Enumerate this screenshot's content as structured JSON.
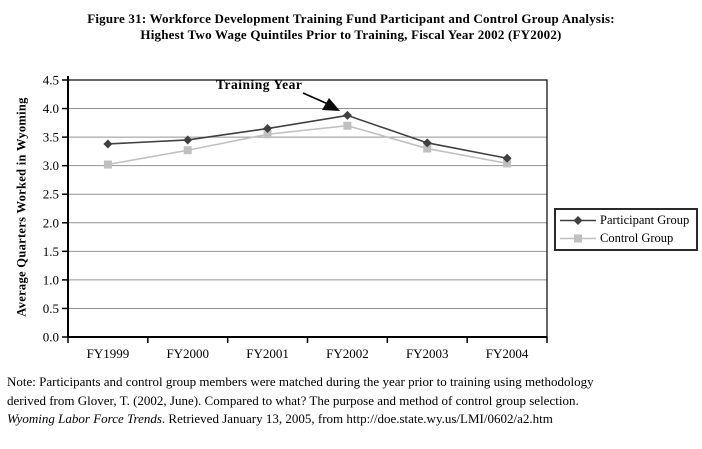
{
  "figure": {
    "title_line1": "Figure 31: Workforce Development Training Fund Participant and Control Group Analysis:",
    "title_line2": "Highest Two Wage Quintiles Prior to Training, Fiscal Year 2002 (FY2002)"
  },
  "chart_data": {
    "type": "line",
    "title": "Figure 31: Workforce Development Training Fund Participant and Control Group Analysis: Highest Two Wage Quintiles Prior to Training, Fiscal Year 2002 (FY2002)",
    "categories": [
      "FY1999",
      "FY2000",
      "FY2001",
      "FY2002",
      "FY2003",
      "FY2004"
    ],
    "series": [
      {
        "name": "Participant Group",
        "marker": "diamond",
        "color": "#404040",
        "values": [
          3.38,
          3.45,
          3.65,
          3.88,
          3.4,
          3.13
        ]
      },
      {
        "name": "Control Group",
        "marker": "square",
        "color": "#c0c0c0",
        "values": [
          3.02,
          3.27,
          3.55,
          3.7,
          3.3,
          3.04
        ]
      }
    ],
    "xlabel": "",
    "ylabel": "Average Quarters Worked in Wyoming",
    "ylim": [
      0,
      4.5
    ],
    "y_tick_labels": [
      "0.0",
      "0.5",
      "1.0",
      "1.5",
      "2.0",
      "2.5",
      "3.0",
      "3.5",
      "4.0",
      "4.5"
    ],
    "grid": "horizontal",
    "legend_position": "right",
    "annotation": {
      "text": "Training Year",
      "target_category": "FY2002",
      "target_series": "Participant Group"
    }
  },
  "note": {
    "line1": "Note: Participants and control group members were matched during the year prior to training using methodology",
    "line2": "derived from Glover, T. (2002, June). Compared to what? The purpose and method of control group selection.",
    "line3_italic": "Wyoming Labor Force Trends",
    "line3_rest": ". Retrieved January 13, 2005, from http://doe.state.wy.us/LMI/0602/a2.htm"
  },
  "colors": {
    "participant": "#404040",
    "control": "#c0c0c0",
    "gridline": "#949494",
    "axis": "#000000",
    "background": "#ffffff"
  }
}
